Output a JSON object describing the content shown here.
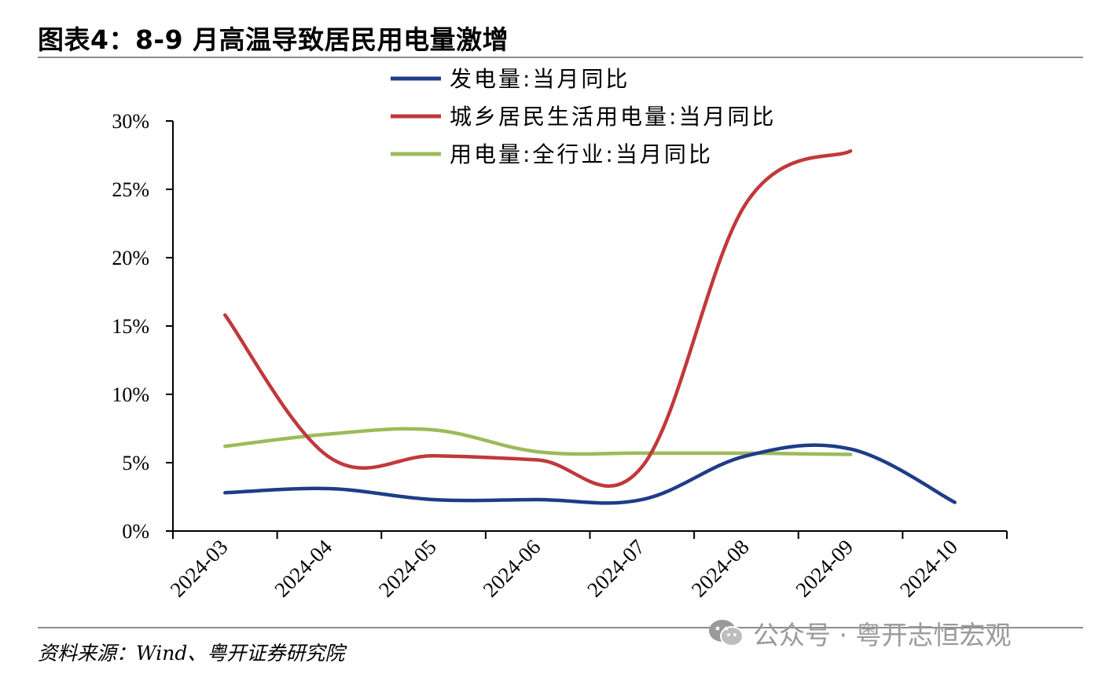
{
  "header": {
    "title": "图表4：8-9 月高温导致居民用电量激增"
  },
  "footer": {
    "source": "资料来源：Wind、粤开证券研究院",
    "watermark": "公众号 · 粤开志恒宏观",
    "watermark_icon": "wechat-icon"
  },
  "colors": {
    "series": [
      "#1f3c88",
      "#c0393b",
      "#9bbb59"
    ],
    "axis": "#000000",
    "rule": "#8c8c8c"
  },
  "chart_data": {
    "type": "line",
    "title": "",
    "xlabel": "",
    "ylabel": "",
    "categories": [
      "2024-03",
      "2024-04",
      "2024-05",
      "2024-06",
      "2024-07",
      "2024-08",
      "2024-09",
      "2024-10"
    ],
    "ylim": [
      0,
      30
    ],
    "yticks": [
      "0%",
      "5%",
      "10%",
      "15%",
      "20%",
      "25%",
      "30%"
    ],
    "grid": false,
    "legend_position": "top",
    "series": [
      {
        "name": "发电量:当月同比",
        "values": [
          2.8,
          3.1,
          2.3,
          2.3,
          2.3,
          5.5,
          6.0,
          2.1
        ]
      },
      {
        "name": "城乡居民生活用电量:当月同比",
        "values": [
          15.8,
          5.4,
          5.5,
          5.2,
          4.7,
          24.0,
          27.8,
          null
        ]
      },
      {
        "name": "用电量:全行业:当月同比",
        "values": [
          6.2,
          7.1,
          7.4,
          5.8,
          5.7,
          5.7,
          5.6,
          null
        ]
      }
    ]
  }
}
